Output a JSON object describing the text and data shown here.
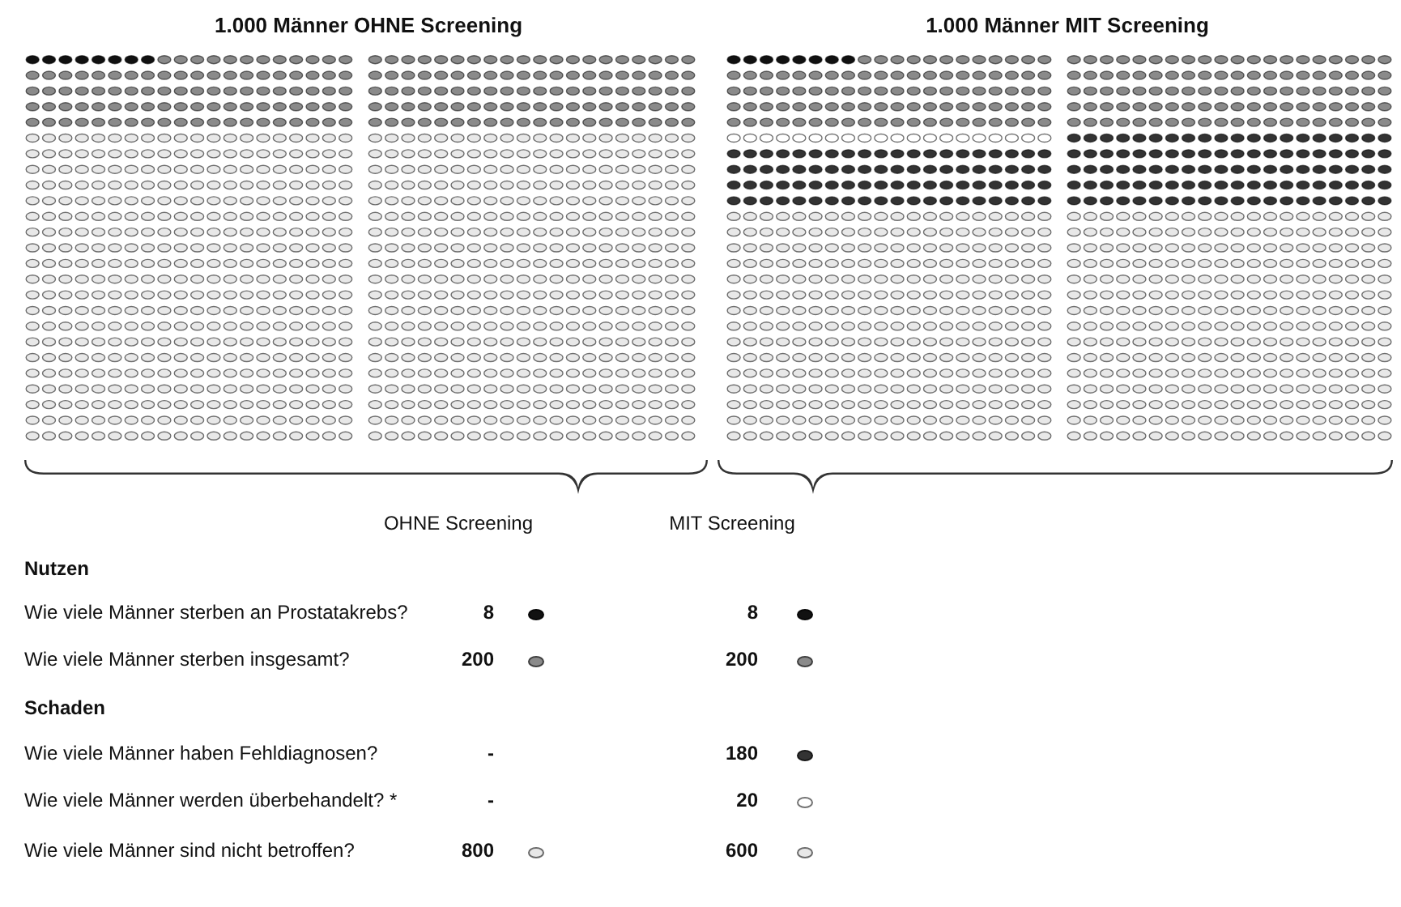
{
  "chart_data": {
    "type": "other",
    "categories": [
      "Wie viele Männer sterben an Prostatakrebs?",
      "Wie viele Männer sterben insgesamt?",
      "Wie viele Männer haben Fehldiagnosen?",
      "Wie viele Männer werden überbehandelt? *",
      "Wie viele Männer sind nicht betroffen?"
    ],
    "colors": [
      "#111111",
      "#8a8a8a",
      "#333333",
      "#ffffff",
      "#e8e8e8"
    ],
    "series": [
      {
        "name": "OHNE Screening",
        "values": [
          8,
          200,
          null,
          null,
          800
        ],
        "value_labels": [
          "8",
          "200",
          "-",
          "-",
          "800"
        ]
      },
      {
        "name": "MIT Screening",
        "values": [
          8,
          200,
          180,
          20,
          600
        ],
        "value_labels": [
          "8",
          "200",
          "180",
          "20",
          "600"
        ]
      }
    ],
    "annotations": [
      "1.000 Männer OHNE Screening",
      "1.000 Männer MIT Screening",
      "Nutzen",
      "Schaden"
    ]
  }
}
